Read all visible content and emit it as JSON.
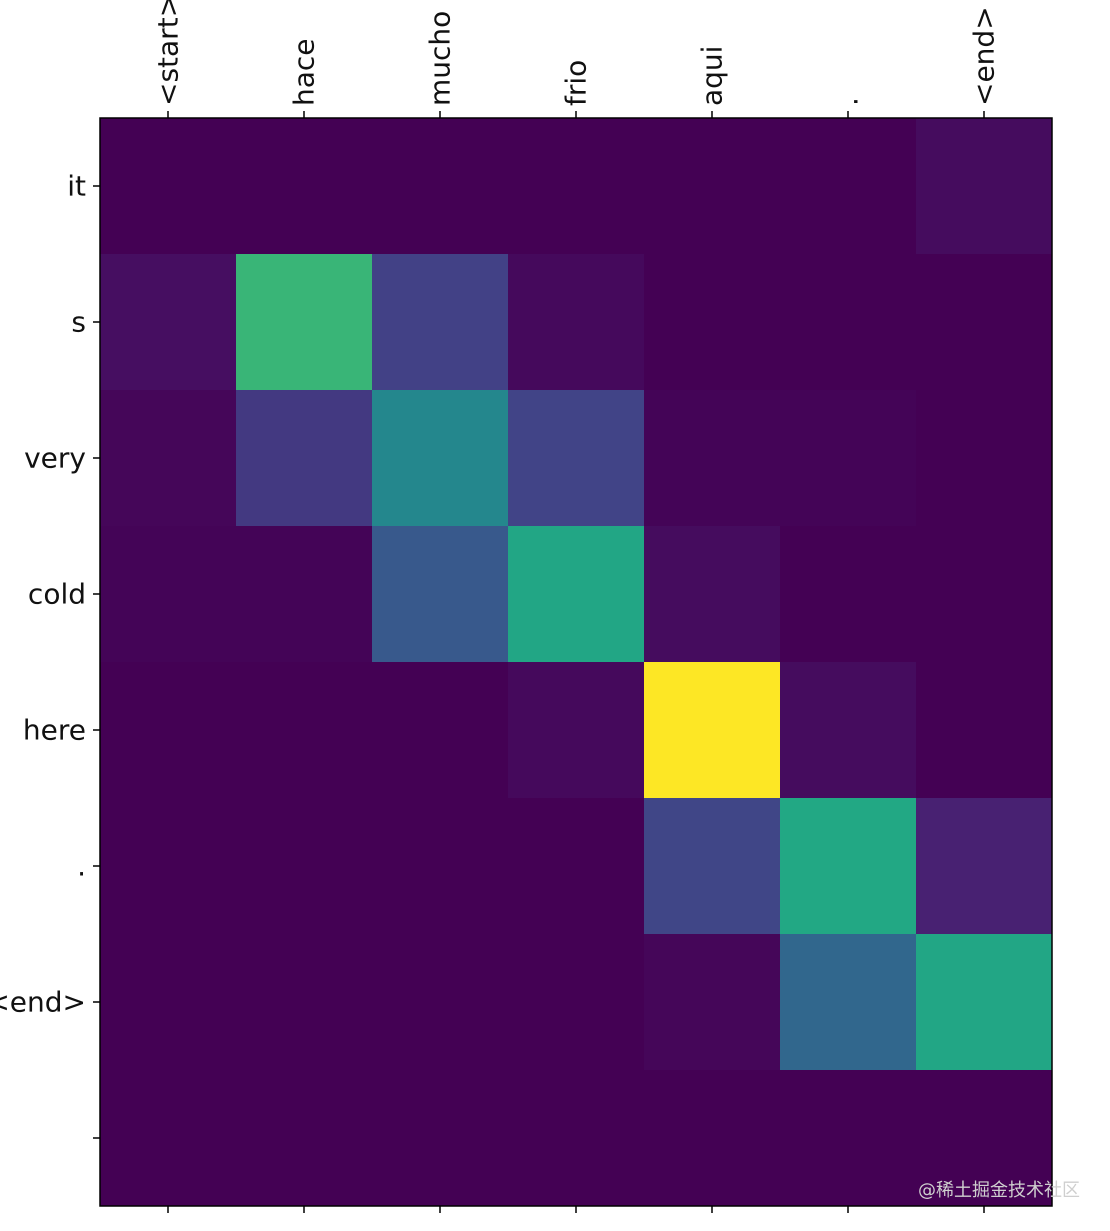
{
  "chart_data": {
    "type": "heatmap",
    "title": "",
    "xlabel": "",
    "ylabel": "",
    "x_tick_labels": [
      "<start>",
      "hace",
      "mucho",
      "frio",
      "aqui",
      ".",
      "<end>"
    ],
    "y_tick_labels": [
      "it",
      "s",
      "very",
      "cold",
      "here",
      ".",
      "<end>",
      ""
    ],
    "x_tick_position": "top",
    "x_tick_rotation": "vertical",
    "colormap": "viridis",
    "vmin": 0,
    "vmax": 1,
    "grid": false,
    "values": [
      [
        0.0,
        0.0,
        0.0,
        0.0,
        0.0,
        0.0,
        0.04
      ],
      [
        0.05,
        0.8,
        0.24,
        0.03,
        0.0,
        0.0,
        0.0
      ],
      [
        0.02,
        0.21,
        0.58,
        0.25,
        0.01,
        0.01,
        0.0
      ],
      [
        0.01,
        0.01,
        0.35,
        0.74,
        0.04,
        0.0,
        0.0
      ],
      [
        0.0,
        0.0,
        0.0,
        0.03,
        1.0,
        0.04,
        0.0
      ],
      [
        0.0,
        0.0,
        0.0,
        0.0,
        0.26,
        0.75,
        0.12
      ],
      [
        0.0,
        0.0,
        0.0,
        0.0,
        0.02,
        0.42,
        0.74
      ],
      [
        0.0,
        0.0,
        0.0,
        0.0,
        0.0,
        0.0,
        0.0
      ]
    ]
  },
  "watermark": {
    "text": "@稀土掘金技术社区"
  }
}
